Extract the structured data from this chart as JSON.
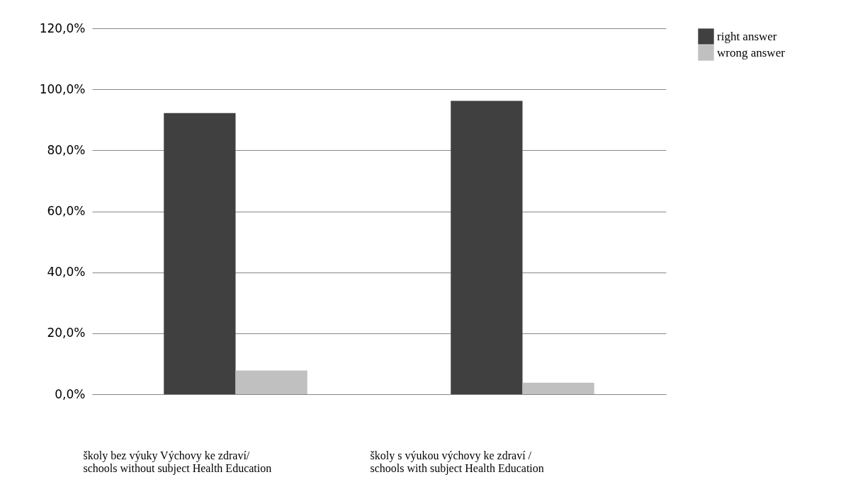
{
  "chart_data": {
    "type": "bar",
    "categories": [
      "školy bez výuky Výchovy ke zdraví/\nschools without subject  Health Education",
      "školy s výukou výchovy ke zdraví /\nschools with subject Health Education"
    ],
    "series": [
      {
        "name": "right answer",
        "color": "#404040",
        "values": [
          92.2,
          96.2
        ]
      },
      {
        "name": "wrong  answer",
        "color": "#c0c0c0",
        "values": [
          7.8,
          3.8
        ]
      }
    ],
    "ylim": [
      0,
      120
    ],
    "yticks": [
      {
        "value": 0,
        "label": "0,0%"
      },
      {
        "value": 20,
        "label": "20,0%"
      },
      {
        "value": 40,
        "label": "40,0%"
      },
      {
        "value": 60,
        "label": "60,0%"
      },
      {
        "value": 80,
        "label": "80,0%"
      },
      {
        "value": 100,
        "label": "100,0%"
      },
      {
        "value": 120,
        "label": "120,0%"
      }
    ],
    "grid": "y",
    "legend": "right"
  }
}
